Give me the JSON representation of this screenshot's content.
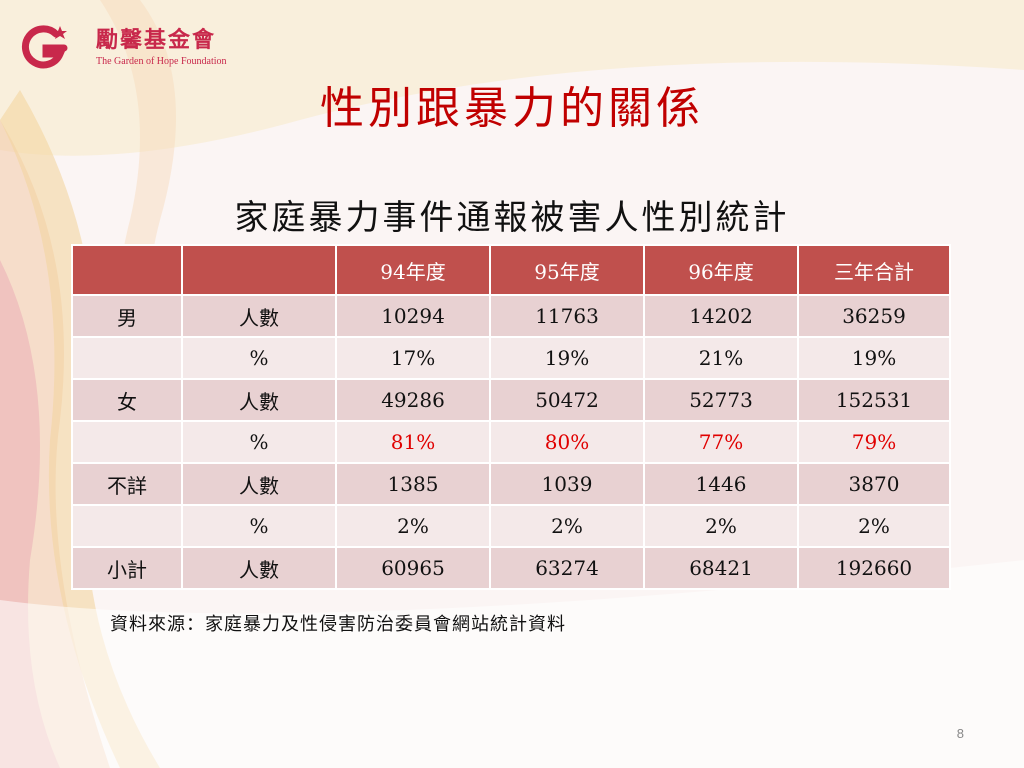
{
  "logo": {
    "name": "勵馨基金會",
    "subtitle": "The Garden of Hope Foundation"
  },
  "slide_title": "性別跟暴力的關係",
  "table": {
    "title": "家庭暴力事件通報被害人性別統計",
    "headers": [
      "",
      "",
      "94年度",
      "95年度",
      "96年度",
      "三年合計"
    ],
    "rows": [
      {
        "group": "男",
        "metric": "人數",
        "cells": [
          "10294",
          "11763",
          "14202",
          "36259"
        ],
        "highlight": false
      },
      {
        "group": "",
        "metric": "%",
        "cells": [
          "17%",
          "19%",
          "21%",
          "19%"
        ],
        "highlight": false
      },
      {
        "group": "女",
        "metric": "人數",
        "cells": [
          "49286",
          "50472",
          "52773",
          "152531"
        ],
        "highlight": false
      },
      {
        "group": "",
        "metric": "%",
        "cells": [
          "81%",
          "80%",
          "77%",
          "79%"
        ],
        "highlight": true
      },
      {
        "group": "不詳",
        "metric": "人數",
        "cells": [
          "1385",
          "1039",
          "1446",
          "3870"
        ],
        "highlight": false
      },
      {
        "group": "",
        "metric": "%",
        "cells": [
          "2%",
          "2%",
          "2%",
          "2%"
        ],
        "highlight": false
      },
      {
        "group": "小計",
        "metric": "人數",
        "cells": [
          "60965",
          "63274",
          "68421",
          "192660"
        ],
        "highlight": false
      }
    ]
  },
  "source": "資料來源：家庭暴力及性侵害防治委員會網站統計資料",
  "page_number": "8",
  "colors": {
    "title": "#c00000",
    "header_bg": "#c0504d",
    "row_odd": "#e8d1d2",
    "row_even": "#f4e9e9",
    "highlight_text": "#e00000",
    "brand": "#c8284b"
  }
}
